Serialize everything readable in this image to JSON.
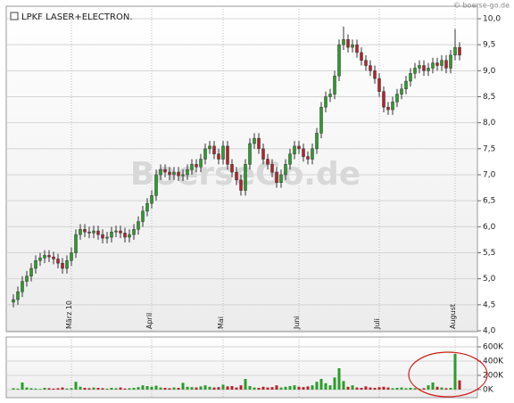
{
  "chart_data": [
    {
      "type": "candlestick",
      "title": "LPKF LASER+ELECTRON.",
      "source": "© boerse-go.de",
      "watermark": "BoerseGo.de",
      "up_color": "#2a9d2a",
      "down_color": "#b8202a",
      "grid": true,
      "xlim": [
        -1,
        104
      ],
      "ylim": [
        4,
        10
      ],
      "xticks": [
        {
          "value": 13,
          "label": "März 10"
        },
        {
          "value": 31,
          "label": "April"
        },
        {
          "value": 47,
          "label": "Mai"
        },
        {
          "value": 64,
          "label": "Juni"
        },
        {
          "value": 82,
          "label": "Juli"
        },
        {
          "value": 99,
          "label": "August"
        }
      ],
      "yticks": [
        {
          "value": 4,
          "label": "4,0"
        },
        {
          "value": 4.5,
          "label": "4,5"
        },
        {
          "value": 5,
          "label": "5,0"
        },
        {
          "value": 5.5,
          "label": "5,5"
        },
        {
          "value": 6,
          "label": "6,0"
        },
        {
          "value": 6.5,
          "label": "6,5"
        },
        {
          "value": 7,
          "label": "7,0"
        },
        {
          "value": 7.5,
          "label": "7,5"
        },
        {
          "value": 8,
          "label": "8,0"
        },
        {
          "value": 8.5,
          "label": "8,5"
        },
        {
          "value": 9,
          "label": "9,0"
        },
        {
          "value": 9.5,
          "label": "9,5"
        },
        {
          "value": 10,
          "label": "10,0"
        }
      ],
      "ohlc": [
        [
          4.55,
          4.7,
          4.45,
          4.6
        ],
        [
          4.6,
          4.85,
          4.5,
          4.75
        ],
        [
          4.75,
          5.05,
          4.65,
          4.95
        ],
        [
          4.95,
          5.15,
          4.85,
          5.05
        ],
        [
          5.05,
          5.3,
          4.95,
          5.2
        ],
        [
          5.2,
          5.45,
          5.1,
          5.35
        ],
        [
          5.35,
          5.5,
          5.25,
          5.4
        ],
        [
          5.4,
          5.55,
          5.3,
          5.45
        ],
        [
          5.45,
          5.55,
          5.32,
          5.42
        ],
        [
          5.42,
          5.52,
          5.28,
          5.38
        ],
        [
          5.38,
          5.48,
          5.2,
          5.3
        ],
        [
          5.3,
          5.4,
          5.1,
          5.2
        ],
        [
          5.2,
          5.45,
          5.1,
          5.35
        ],
        [
          5.35,
          5.6,
          5.25,
          5.5
        ],
        [
          5.5,
          5.95,
          5.4,
          5.85
        ],
        [
          5.85,
          6.05,
          5.75,
          5.95
        ],
        [
          5.95,
          6.05,
          5.8,
          5.9
        ],
        [
          5.9,
          6.0,
          5.78,
          5.88
        ],
        [
          5.88,
          6.02,
          5.78,
          5.92
        ],
        [
          5.92,
          6.02,
          5.75,
          5.85
        ],
        [
          5.85,
          5.95,
          5.68,
          5.78
        ],
        [
          5.78,
          5.9,
          5.68,
          5.8
        ],
        [
          5.8,
          6.0,
          5.7,
          5.9
        ],
        [
          5.9,
          6.02,
          5.8,
          5.92
        ],
        [
          5.92,
          6.02,
          5.78,
          5.88
        ],
        [
          5.88,
          5.98,
          5.7,
          5.8
        ],
        [
          5.8,
          5.95,
          5.7,
          5.85
        ],
        [
          5.85,
          6.05,
          5.75,
          5.95
        ],
        [
          5.95,
          6.2,
          5.85,
          6.1
        ],
        [
          6.1,
          6.4,
          6.0,
          6.3
        ],
        [
          6.3,
          6.55,
          6.2,
          6.45
        ],
        [
          6.45,
          6.7,
          6.35,
          6.6
        ],
        [
          6.6,
          7.1,
          6.5,
          7.0
        ],
        [
          7.0,
          7.2,
          6.9,
          7.1
        ],
        [
          7.1,
          7.2,
          6.95,
          7.05
        ],
        [
          7.05,
          7.15,
          6.9,
          7.0
        ],
        [
          7.0,
          7.15,
          6.9,
          7.05
        ],
        [
          7.05,
          7.15,
          6.88,
          6.98
        ],
        [
          6.98,
          7.1,
          6.88,
          7.0
        ],
        [
          7.0,
          7.2,
          6.9,
          7.1
        ],
        [
          7.1,
          7.3,
          7.0,
          7.2
        ],
        [
          7.2,
          7.3,
          7.05,
          7.15
        ],
        [
          7.15,
          7.4,
          7.05,
          7.3
        ],
        [
          7.3,
          7.6,
          7.2,
          7.5
        ],
        [
          7.5,
          7.65,
          7.4,
          7.55
        ],
        [
          7.55,
          7.65,
          7.3,
          7.4
        ],
        [
          7.4,
          7.5,
          7.2,
          7.3
        ],
        [
          7.3,
          7.65,
          7.2,
          7.55
        ],
        [
          7.55,
          7.65,
          7.1,
          7.2
        ],
        [
          7.2,
          7.3,
          6.95,
          7.05
        ],
        [
          7.05,
          7.15,
          6.8,
          6.9
        ],
        [
          6.9,
          7.0,
          6.6,
          6.7
        ],
        [
          6.7,
          7.3,
          6.6,
          7.2
        ],
        [
          7.2,
          7.7,
          7.1,
          7.6
        ],
        [
          7.6,
          7.8,
          7.5,
          7.7
        ],
        [
          7.7,
          7.8,
          7.4,
          7.5
        ],
        [
          7.5,
          7.6,
          7.2,
          7.3
        ],
        [
          7.3,
          7.4,
          7.1,
          7.2
        ],
        [
          7.2,
          7.3,
          6.95,
          7.05
        ],
        [
          7.05,
          7.15,
          6.75,
          6.85
        ],
        [
          6.85,
          7.1,
          6.75,
          7.0
        ],
        [
          7.0,
          7.3,
          6.9,
          7.2
        ],
        [
          7.2,
          7.5,
          7.1,
          7.4
        ],
        [
          7.4,
          7.65,
          7.3,
          7.55
        ],
        [
          7.55,
          7.65,
          7.4,
          7.5
        ],
        [
          7.5,
          7.6,
          7.25,
          7.35
        ],
        [
          7.35,
          7.45,
          7.2,
          7.3
        ],
        [
          7.3,
          7.6,
          7.2,
          7.5
        ],
        [
          7.5,
          7.9,
          7.4,
          7.8
        ],
        [
          7.8,
          8.4,
          7.7,
          8.3
        ],
        [
          8.3,
          8.6,
          8.2,
          8.5
        ],
        [
          8.5,
          8.65,
          8.4,
          8.55
        ],
        [
          8.55,
          9.0,
          8.45,
          8.9
        ],
        [
          8.9,
          9.6,
          8.8,
          9.5
        ],
        [
          9.5,
          9.85,
          9.4,
          9.6
        ],
        [
          9.6,
          9.7,
          9.35,
          9.45
        ],
        [
          9.45,
          9.6,
          9.35,
          9.5
        ],
        [
          9.5,
          9.6,
          9.25,
          9.35
        ],
        [
          9.35,
          9.45,
          9.1,
          9.2
        ],
        [
          9.2,
          9.3,
          9.0,
          9.1
        ],
        [
          9.1,
          9.2,
          8.9,
          9.0
        ],
        [
          9.0,
          9.1,
          8.75,
          8.85
        ],
        [
          8.85,
          8.95,
          8.5,
          8.6
        ],
        [
          8.6,
          8.7,
          8.2,
          8.3
        ],
        [
          8.3,
          8.4,
          8.15,
          8.25
        ],
        [
          8.25,
          8.5,
          8.15,
          8.4
        ],
        [
          8.4,
          8.65,
          8.3,
          8.55
        ],
        [
          8.55,
          8.75,
          8.45,
          8.65
        ],
        [
          8.65,
          8.9,
          8.55,
          8.8
        ],
        [
          8.8,
          9.05,
          8.7,
          8.95
        ],
        [
          8.95,
          9.15,
          8.85,
          9.05
        ],
        [
          9.05,
          9.2,
          8.95,
          9.1
        ],
        [
          9.1,
          9.2,
          8.9,
          9.0
        ],
        [
          9.0,
          9.15,
          8.9,
          9.05
        ],
        [
          9.05,
          9.25,
          8.95,
          9.15
        ],
        [
          9.15,
          9.25,
          9.0,
          9.1
        ],
        [
          9.1,
          9.3,
          9.0,
          9.2
        ],
        [
          9.2,
          9.3,
          8.95,
          9.05
        ],
        [
          9.05,
          9.4,
          8.95,
          9.3
        ],
        [
          9.3,
          9.8,
          9.2,
          9.45
        ],
        [
          9.45,
          9.55,
          9.2,
          9.3
        ]
      ]
    },
    {
      "type": "bar",
      "ylim": [
        0,
        700000
      ],
      "yticks": [
        {
          "value": 0,
          "label": "0K"
        },
        {
          "value": 200000,
          "label": "200K"
        },
        {
          "value": 400000,
          "label": "400K"
        },
        {
          "value": 600000,
          "label": "600K"
        }
      ],
      "values": [
        20000,
        15000,
        100000,
        30000,
        20000,
        15000,
        10000,
        25000,
        20000,
        15000,
        20000,
        30000,
        15000,
        20000,
        110000,
        40000,
        25000,
        20000,
        30000,
        25000,
        20000,
        15000,
        25000,
        20000,
        30000,
        15000,
        20000,
        25000,
        35000,
        60000,
        50000,
        40000,
        55000,
        30000,
        25000,
        20000,
        30000,
        25000,
        95000,
        40000,
        35000,
        30000,
        45000,
        60000,
        40000,
        30000,
        35000,
        70000,
        45000,
        50000,
        30000,
        60000,
        150000,
        50000,
        30000,
        25000,
        40000,
        30000,
        35000,
        60000,
        30000,
        40000,
        50000,
        60000,
        40000,
        35000,
        45000,
        60000,
        110000,
        150000,
        90000,
        60000,
        170000,
        300000,
        120000,
        40000,
        60000,
        30000,
        25000,
        45000,
        30000,
        25000,
        35000,
        40000,
        30000,
        20000,
        25000,
        30000,
        20000,
        25000,
        20000,
        15000,
        20000,
        60000,
        100000,
        40000,
        30000,
        20000,
        25000,
        500000,
        130000
      ]
    }
  ]
}
